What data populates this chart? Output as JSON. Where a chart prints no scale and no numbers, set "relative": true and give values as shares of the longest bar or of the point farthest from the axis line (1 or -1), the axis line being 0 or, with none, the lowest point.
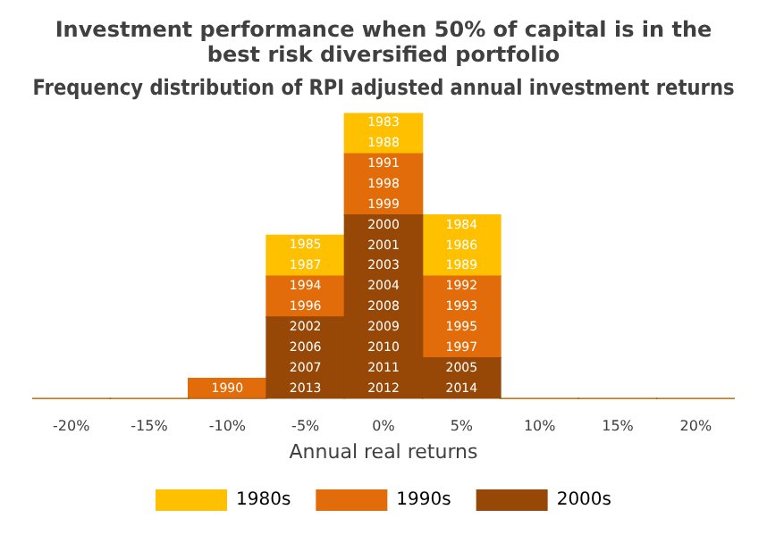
{
  "chart_data": {
    "type": "bar",
    "title": "Investment performance when 50% of capital is in the best risk diversified portfolio",
    "subtitle": "Frequency distribution of RPI adjusted annual investment returns",
    "xlabel": "Annual real returns",
    "categories": [
      "-20%",
      "-15%",
      "-10%",
      "-5%",
      "0%",
      "5%",
      "10%",
      "15%",
      "20%"
    ],
    "stacked": true,
    "relative": true,
    "legend": "bottom",
    "grid": false,
    "series": [
      {
        "name": "2000s",
        "color": "#974706",
        "values": [
          0,
          0,
          0,
          0.286,
          0.643,
          0.143,
          0,
          0,
          0
        ]
      },
      {
        "name": "1990s",
        "color": "#e36c0a",
        "values": [
          0,
          0,
          0.071,
          0.143,
          0.214,
          0.286,
          0,
          0,
          0
        ]
      },
      {
        "name": "1980s",
        "color": "#ffc000",
        "values": [
          0,
          0,
          0,
          0.143,
          0.143,
          0.214,
          0,
          0,
          0
        ]
      }
    ],
    "annotations": [
      "1990",
      "1985",
      "1987",
      "1994",
      "1996",
      "2002",
      "2006",
      "2007",
      "2013",
      "1983",
      "1988",
      "1991",
      "1998",
      "1999",
      "2000",
      "2001",
      "2003",
      "2004",
      "2008",
      "2009",
      "2010",
      "2011",
      "2012",
      "1984",
      "1986",
      "1989",
      "1992",
      "1993",
      "1995",
      "1997",
      "2005",
      "2014"
    ]
  }
}
